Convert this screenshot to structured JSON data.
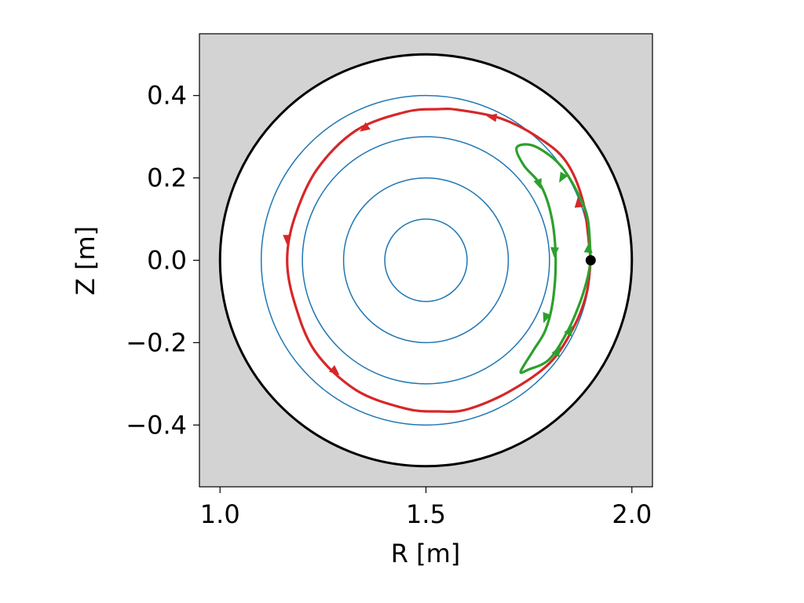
{
  "chart_data": {
    "type": "line",
    "xlabel": "R [m]",
    "ylabel": "Z [m]",
    "xlim": [
      0.95,
      2.05
    ],
    "ylim": [
      -0.55,
      0.55
    ],
    "x_ticks": [
      {
        "value": 1.0,
        "label": "1.0"
      },
      {
        "value": 1.5,
        "label": "1.5"
      },
      {
        "value": 2.0,
        "label": "2.0"
      }
    ],
    "y_ticks": [
      {
        "value": 0.4,
        "label": "0.4"
      },
      {
        "value": 0.2,
        "label": "0.2"
      },
      {
        "value": 0.0,
        "label": "0.0"
      },
      {
        "value": -0.2,
        "label": "−0.2"
      },
      {
        "value": -0.4,
        "label": "−0.4"
      }
    ],
    "grid": false,
    "background_color": "#d3d3d3",
    "vessel": {
      "center_R": 1.5,
      "center_Z": 0.0,
      "radius": 0.5,
      "fill": "#ffffff",
      "color": "#000000"
    },
    "flux_surfaces": {
      "center_R": 1.5,
      "center_Z": 0.0,
      "radii": [
        0.1,
        0.2,
        0.3,
        0.4
      ],
      "color": "#1f77b4"
    },
    "start_point": {
      "R": 1.9,
      "Z": 0.0,
      "color": "#000000"
    },
    "orbits": [
      {
        "color": "#d62728",
        "R": [
          1.9,
          1.882,
          1.84,
          1.77,
          1.68,
          1.58,
          1.53,
          1.45,
          1.33,
          1.235,
          1.18,
          1.163,
          1.18,
          1.23,
          1.33,
          1.45,
          1.53,
          1.6,
          1.7,
          1.8,
          1.86,
          1.89,
          1.9
        ],
        "Z": [
          0.0,
          0.14,
          0.24,
          0.3,
          0.345,
          0.365,
          0.367,
          0.36,
          0.315,
          0.22,
          0.1,
          0.0,
          -0.1,
          -0.22,
          -0.315,
          -0.36,
          -0.367,
          -0.362,
          -0.32,
          -0.25,
          -0.16,
          -0.08,
          0.0
        ],
        "arrows": [
          {
            "R": 1.87,
            "Z": 0.14,
            "angle": 96
          },
          {
            "R": 1.66,
            "Z": 0.348,
            "angle": 170
          },
          {
            "R": 1.35,
            "Z": 0.32,
            "angle": 215
          },
          {
            "R": 1.163,
            "Z": 0.05,
            "angle": 270
          },
          {
            "R": 1.28,
            "Z": -0.27,
            "angle": 320
          }
        ]
      },
      {
        "color": "#2ca02c",
        "R": [
          1.9,
          1.893,
          1.87,
          1.835,
          1.8,
          1.755,
          1.72,
          1.738,
          1.78,
          1.806,
          1.815,
          1.808,
          1.79,
          1.76,
          1.73,
          1.75,
          1.8,
          1.845,
          1.875,
          1.893,
          1.9
        ],
        "Z": [
          0.0,
          0.1,
          0.16,
          0.22,
          0.255,
          0.28,
          0.273,
          0.23,
          0.18,
          0.1,
          0.0,
          -0.1,
          -0.17,
          -0.22,
          -0.27,
          -0.265,
          -0.24,
          -0.17,
          -0.1,
          -0.04,
          0.0
        ],
        "arrows": [
          {
            "R": 1.83,
            "Z": 0.2,
            "angle": 240
          },
          {
            "R": 1.775,
            "Z": 0.185,
            "angle": 290
          },
          {
            "R": 1.812,
            "Z": 0.02,
            "angle": 266
          },
          {
            "R": 1.79,
            "Z": -0.14,
            "angle": 250
          },
          {
            "R": 1.85,
            "Z": -0.17,
            "angle": 60
          },
          {
            "R": 1.895,
            "Z": 0.03,
            "angle": 85
          },
          {
            "R": 1.82,
            "Z": -0.22,
            "angle": 60
          }
        ]
      }
    ]
  }
}
